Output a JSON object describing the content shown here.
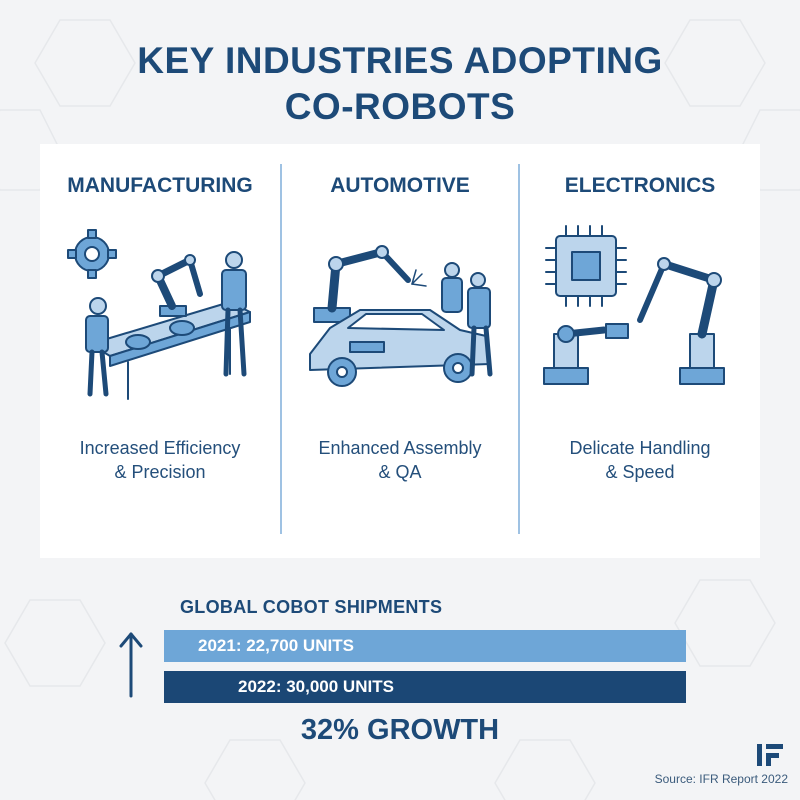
{
  "title": {
    "line1": "KEY INDUSTRIES ADOPTING",
    "line2": "CO-ROBOTS"
  },
  "industries": [
    {
      "name": "MANUFACTURING",
      "caption_line1": "Increased Efficiency",
      "caption_line2": "& Precision",
      "illustration": "conveyor-cobot-workers-illustration"
    },
    {
      "name": "AUTOMOTIVE",
      "caption_line1": "Enhanced Assembly",
      "caption_line2": "& QA",
      "illustration": "car-welding-cobot-illustration"
    },
    {
      "name": "ELECTRONICS",
      "caption_line1": "Delicate Handling",
      "caption_line2": "& Speed",
      "illustration": "chip-handling-cobot-illustration"
    }
  ],
  "shipments": {
    "title": "GLOBAL COBOT SHIPMENTS",
    "bars": [
      {
        "label": "2021: 22,700 UNITS",
        "value": 22700,
        "color": "#6ea6d7"
      },
      {
        "label": "2022: 30,000 UNITS",
        "value": 30000,
        "color": "#1b4775"
      }
    ],
    "growth": "32% GROWTH"
  },
  "source": "Source: IFR Report 2022",
  "colors": {
    "primary": "#1d4a78",
    "accent": "#6ea6d7",
    "line": "#9fc2e3",
    "background": "#f3f4f6"
  }
}
